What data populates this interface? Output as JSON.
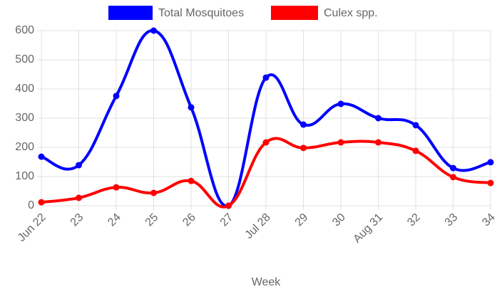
{
  "chart_data": {
    "type": "line",
    "x_label": "Week",
    "categories": [
      "Jun 22",
      "23",
      "24",
      "25",
      "26",
      "27",
      "Jul 28",
      "29",
      "30",
      "Aug 31",
      "32",
      "33",
      "34"
    ],
    "series": [
      {
        "name": "Total Mosquitoes",
        "color": "#0000ff",
        "values": [
          168,
          139,
          376,
          600,
          337,
          0,
          439,
          278,
          349,
          300,
          276,
          129,
          149
        ]
      },
      {
        "name": "Culex spp.",
        "color": "#ff0000",
        "values": [
          12,
          27,
          63,
          44,
          85,
          0,
          217,
          198,
          217,
          217,
          188,
          98,
          78
        ]
      }
    ],
    "ylim": [
      0,
      600
    ],
    "yticks": [
      0,
      100,
      200,
      300,
      400,
      500,
      600
    ],
    "grid": true,
    "legend": "top"
  }
}
